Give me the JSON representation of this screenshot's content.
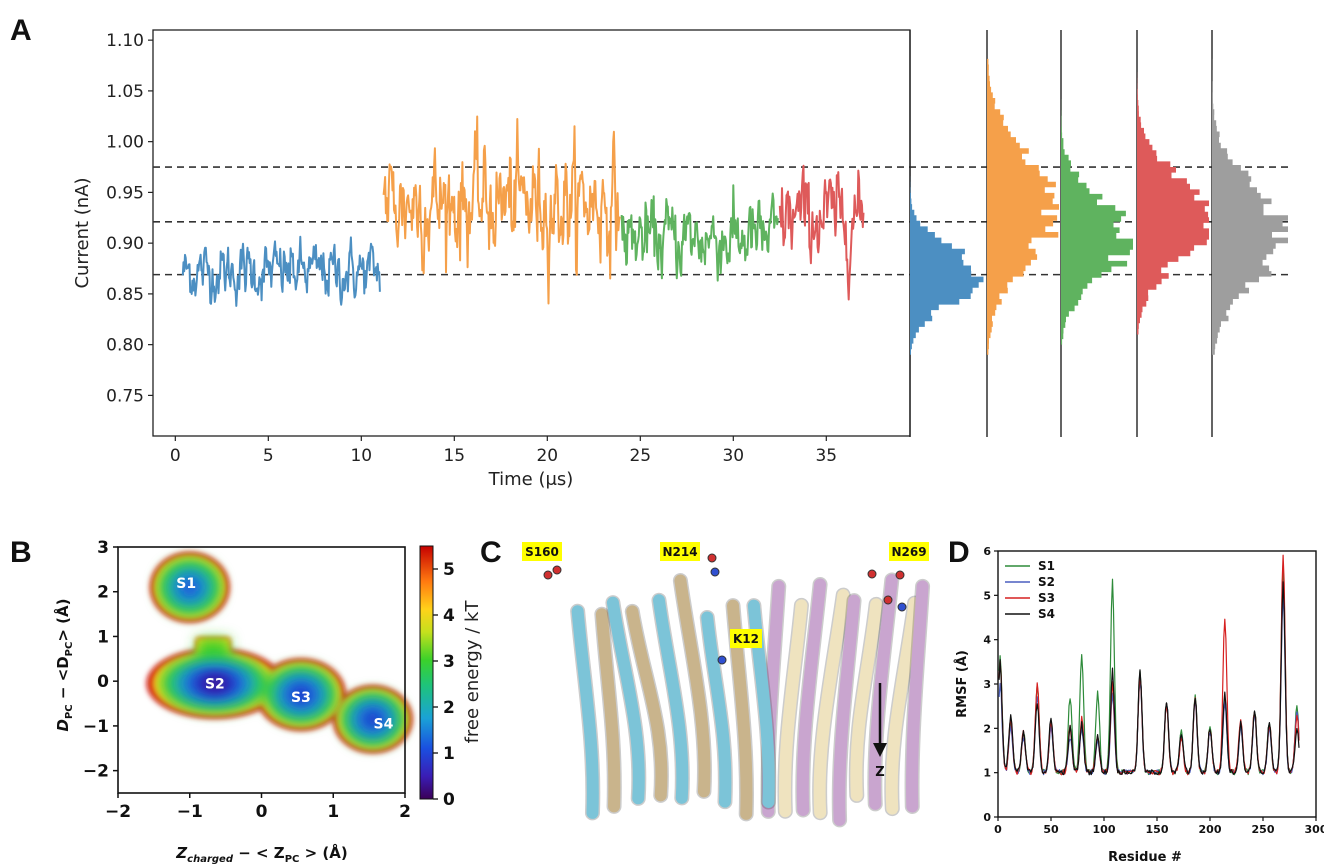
{
  "panel_labels": {
    "a": "A",
    "b": "B",
    "c": "C",
    "d": "D"
  },
  "colors": {
    "seg1": "#4c8fc2",
    "seg2": "#f5a04a",
    "seg3": "#5fb35f",
    "seg4": "#de5a5a",
    "hist_all": "#9e9e9e",
    "ref_line": "#333333"
  },
  "chart_data": [
    {
      "id": "A-trace",
      "type": "line",
      "xlabel": "Time (μs)",
      "ylabel": "Current (nA)",
      "xlim": [
        -1.2,
        39.5
      ],
      "ylim": [
        0.71,
        1.11
      ],
      "xticks": [
        "0",
        "5",
        "10",
        "15",
        "20",
        "25",
        "30",
        "35"
      ],
      "yticks": [
        "0.75",
        "0.80",
        "0.85",
        "0.90",
        "0.95",
        "1.00",
        "1.05",
        "1.10"
      ],
      "reference_lines": [
        0.869,
        0.921,
        0.975
      ],
      "series": [
        {
          "color": "#4c8fc2",
          "t_start": 0.4,
          "t_end": 11.0,
          "mean": 0.872,
          "std": 0.026,
          "min": 0.795,
          "max": 0.97
        },
        {
          "color": "#f5a04a",
          "t_start": 11.2,
          "t_end": 23.9,
          "mean": 0.94,
          "std": 0.05,
          "min": 0.79,
          "max": 1.08
        },
        {
          "color": "#5fb35f",
          "t_start": 24.0,
          "t_end": 32.4,
          "mean": 0.905,
          "std": 0.035,
          "min": 0.8,
          "max": 1.04
        },
        {
          "color": "#de5a5a",
          "t_start": 32.5,
          "t_end": 37.0,
          "mean": 0.925,
          "std": 0.04,
          "min": 0.808,
          "max": 1.065
        }
      ]
    },
    {
      "id": "A-histograms",
      "type": "bar",
      "orientation": "horizontal",
      "ylim": [
        0.71,
        1.11
      ],
      "histograms": [
        {
          "color": "#4c8fc2",
          "mean": 0.868,
          "std": 0.026,
          "min": 0.79,
          "max": 0.975
        },
        {
          "color": "#f5a04a",
          "mean": 0.935,
          "std": 0.05,
          "min": 0.79,
          "max": 1.08
        },
        {
          "color": "#5fb35f",
          "mean": 0.905,
          "std": 0.036,
          "min": 0.8,
          "max": 1.04
        },
        {
          "color": "#de5a5a",
          "mean": 0.924,
          "std": 0.04,
          "min": 0.81,
          "max": 1.065
        },
        {
          "color": "#9e9e9e",
          "mean": 0.908,
          "std": 0.045,
          "min": 0.79,
          "max": 1.08
        }
      ]
    },
    {
      "id": "B",
      "type": "heatmap",
      "xlabel": "Z",
      "xlabel_sub": "charged",
      "xlabel_rest": " − < Z",
      "xlabel_sub2": "PC",
      "xlabel_end": " > (Å)",
      "ylabel": "D",
      "ylabel_sub": "PC",
      "ylabel_rest": " − <D",
      "ylabel_sub2": "PC",
      "ylabel_end": "> (Å)",
      "xlim": [
        -2,
        2
      ],
      "ylim": [
        -2.5,
        3
      ],
      "xticks": [
        "−2",
        "−1",
        "0",
        "1",
        "2"
      ],
      "yticks": [
        "−2",
        "−1",
        "0",
        "1",
        "2",
        "3"
      ],
      "colorbar": {
        "label": "free energy / kT",
        "range": [
          0,
          5.5
        ],
        "ticks": [
          "0",
          "1",
          "2",
          "3",
          "4",
          "5"
        ]
      },
      "states": [
        {
          "name": "S1",
          "x": -1.05,
          "y": 2.2
        },
        {
          "name": "S2",
          "x": -0.65,
          "y": -0.05
        },
        {
          "name": "S3",
          "x": 0.55,
          "y": -0.35
        },
        {
          "name": "S4",
          "x": 1.7,
          "y": -0.95
        }
      ]
    },
    {
      "id": "D",
      "type": "line",
      "xlabel": "Residue #",
      "ylabel": "RMSF (Å)",
      "xlim": [
        0,
        300
      ],
      "ylim": [
        0,
        6
      ],
      "xticks": [
        "0",
        "50",
        "100",
        "150",
        "200",
        "250",
        "300"
      ],
      "yticks": [
        "0",
        "1",
        "2",
        "3",
        "4",
        "5",
        "6"
      ],
      "series": [
        {
          "name": "S1",
          "color": "#2e8b3a"
        },
        {
          "name": "S2",
          "color": "#4a5fbf"
        },
        {
          "name": "S3",
          "color": "#d62020"
        },
        {
          "name": "S4",
          "color": "#111111"
        }
      ],
      "peaks": [
        {
          "x": 2,
          "S1": 3.6,
          "S2": 3.0,
          "S3": 3.5,
          "S4": 3.5
        },
        {
          "x": 12,
          "S1": 2.1,
          "S2": 2.0,
          "S3": 2.2,
          "S4": 2.3
        },
        {
          "x": 24,
          "S1": 1.9,
          "S2": 1.8,
          "S3": 1.9,
          "S4": 1.9
        },
        {
          "x": 37,
          "S1": 3.0,
          "S2": 2.7,
          "S3": 3.0,
          "S4": 2.6
        },
        {
          "x": 50,
          "S1": 2.1,
          "S2": 2.0,
          "S3": 2.1,
          "S4": 2.2
        },
        {
          "x": 68,
          "S1": 2.7,
          "S2": 1.8,
          "S3": 2.0,
          "S4": 2.0
        },
        {
          "x": 79,
          "S1": 3.6,
          "S2": 2.0,
          "S3": 2.2,
          "S4": 2.1
        },
        {
          "x": 94,
          "S1": 2.8,
          "S2": 1.7,
          "S3": 1.8,
          "S4": 1.8
        },
        {
          "x": 108,
          "S1": 5.3,
          "S2": 2.8,
          "S3": 3.0,
          "S4": 3.3
        },
        {
          "x": 134,
          "S1": 3.3,
          "S2": 3.1,
          "S3": 3.2,
          "S4": 3.3
        },
        {
          "x": 159,
          "S1": 2.6,
          "S2": 2.6,
          "S3": 2.6,
          "S4": 2.6
        },
        {
          "x": 173,
          "S1": 1.9,
          "S2": 1.8,
          "S3": 1.8,
          "S4": 1.9
        },
        {
          "x": 186,
          "S1": 2.7,
          "S2": 2.6,
          "S3": 2.7,
          "S4": 2.7
        },
        {
          "x": 200,
          "S1": 2.0,
          "S2": 1.9,
          "S3": 2.0,
          "S4": 2.0
        },
        {
          "x": 214,
          "S1": 2.7,
          "S2": 2.6,
          "S3": 4.5,
          "S4": 2.8
        },
        {
          "x": 229,
          "S1": 2.1,
          "S2": 2.0,
          "S3": 2.2,
          "S4": 2.1
        },
        {
          "x": 242,
          "S1": 2.4,
          "S2": 2.3,
          "S3": 2.4,
          "S4": 2.4
        },
        {
          "x": 256,
          "S1": 2.1,
          "S2": 2.0,
          "S3": 2.1,
          "S4": 2.1
        },
        {
          "x": 269,
          "S1": 5.7,
          "S2": 5.0,
          "S3": 5.9,
          "S4": 5.3
        },
        {
          "x": 282,
          "S1": 2.5,
          "S2": 2.4,
          "S3": 2.3,
          "S4": 2.0
        }
      ]
    }
  ],
  "structure": {
    "residue_labels": [
      "S160",
      "N214",
      "N269",
      "K12"
    ],
    "axis_label": "Z",
    "ribbon_colors": [
      "#7cc4d8",
      "#c9a5cf",
      "#c9b48c",
      "#efe3bf"
    ]
  }
}
